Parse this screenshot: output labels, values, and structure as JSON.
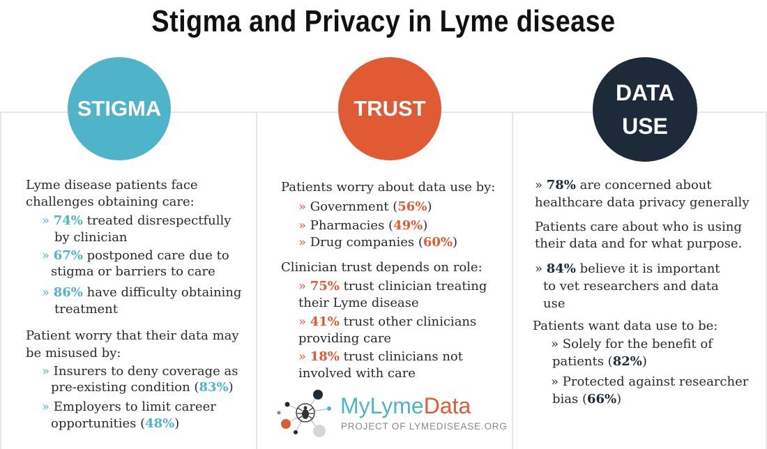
{
  "title": "Stigma and Privacy in Lyme disease",
  "columns": {
    "stigma": {
      "circle_label": "STIGMA",
      "intro_line1": "Lyme disease patients face",
      "intro_line2": "challenges obtaining care:",
      "bullet": "»",
      "item1_value": "74%",
      "item1_text": "treated disrespectfully",
      "item1_text2": "by clinician",
      "item2_value": "67%",
      "item2_text": "postponed care due to",
      "item2_text2": "stigma or barriers to care",
      "item3_value": "86%",
      "item3_text": "have difficulty obtaining",
      "item3_text2": "treatment",
      "worry_line1": "Patient worry that their data may",
      "worry_line2": "be misused by:",
      "worry1_text": "Insurers to deny coverage as",
      "worry1_text2": "pre-existing condition (",
      "worry1_value": "83%",
      "worry2_text": "Employers to limit career",
      "worry2_text2": "opportunities (",
      "worry2_value": "48%",
      "close_paren": ")"
    },
    "trust": {
      "circle_label": "TRUST",
      "intro": "Patients worry about data use by:",
      "gov_text": "Government (",
      "gov_value": "56%",
      "pharm_text": "Pharmacies (",
      "pharm_value": "49%",
      "drug_text": "Drug companies (",
      "drug_value": "60%",
      "clin_intro": "Clinician trust depends on role:",
      "c1_value": "75%",
      "c1_text": "trust clinician treating",
      "c1_text2": "their Lyme disease",
      "c2_value": "41%",
      "c2_text": "trust other clinicians",
      "c2_text2": "providing care",
      "c3_value": "18%",
      "c3_text": "trust clinicians not",
      "c3_text2": "involved with care"
    },
    "data_use": {
      "circle_line1": "DATA",
      "circle_line2": "USE",
      "s1_value": "78%",
      "s1_text": "are concerned about",
      "s1_text2": "healthcare data privacy generally",
      "p_line1": "Patients care about who is using",
      "p_line2": "their data and for what purpose.",
      "s2_value": "84%",
      "s2_text": "believe it is important",
      "s2_text2": "to vet researchers and data",
      "s2_text3": "use",
      "want_intro": "Patients want data use to be:",
      "w1_text": "Solely for the benefit of",
      "w1_text2": "patients (",
      "w1_value": "82%",
      "w2_text": "Protected against researcher",
      "w2_text2": "bias (",
      "w2_value": "66%"
    }
  },
  "logo": {
    "part1": "MyLyme",
    "part2": "Data",
    "subtitle": "PROJECT OF LYMEDISEASE.ORG"
  },
  "colors": {
    "stigma": "#4fb3c9",
    "trust": "#e05a33",
    "data_use": "#1d2a3a"
  }
}
